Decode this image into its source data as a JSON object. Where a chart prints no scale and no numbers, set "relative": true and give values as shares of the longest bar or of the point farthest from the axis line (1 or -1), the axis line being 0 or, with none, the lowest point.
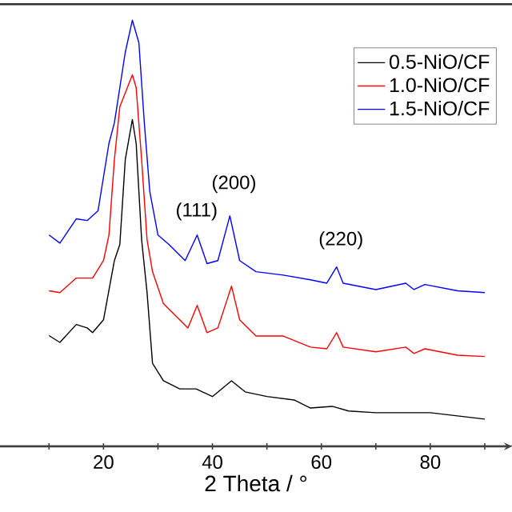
{
  "chart_data": {
    "type": "line",
    "relative": true,
    "xlabel": "2 Theta / °",
    "xlim": [
      1,
      95
    ],
    "xticks": [
      {
        "value": 10,
        "label": null
      },
      20,
      {
        "value": 30,
        "label": null
      },
      40,
      {
        "value": 50,
        "label": null
      },
      60,
      {
        "value": 70,
        "label": null
      },
      80,
      {
        "value": 90,
        "label": null
      }
    ],
    "tick_labels": "x",
    "legend": "top right",
    "grid": false,
    "marker": "none",
    "line_style": "solid",
    "annotations": [
      "(111)",
      "(200)",
      "(220)"
    ],
    "series": [
      {
        "name": "0.5-NiO/CF",
        "color": "#000000",
        "x": [
          10,
          12,
          15,
          17,
          18,
          20,
          22,
          23,
          24,
          25.3,
          26,
          27,
          28,
          29,
          31,
          34,
          37,
          40,
          43.5,
          46,
          50,
          55,
          58,
          62,
          65,
          70,
          80,
          90
        ],
        "values": [
          0.26,
          0.244,
          0.286,
          0.278,
          0.267,
          0.297,
          0.436,
          0.474,
          0.673,
          0.767,
          0.711,
          0.485,
          0.361,
          0.195,
          0.154,
          0.135,
          0.135,
          0.117,
          0.154,
          0.128,
          0.117,
          0.109,
          0.09,
          0.094,
          0.083,
          0.079,
          0.079,
          0.064
        ]
      },
      {
        "name": "1.0-NiO/CF",
        "color": "#ff0000",
        "x": [
          10,
          12,
          15,
          18,
          20,
          21,
          22,
          23,
          25.3,
          26,
          27,
          28,
          29,
          31,
          34,
          35.5,
          37.2,
          39,
          41,
          43.5,
          45,
          48,
          53,
          58,
          61,
          62.8,
          64,
          70,
          75.5,
          77,
          79,
          85,
          90
        ],
        "values": [
          0.365,
          0.361,
          0.395,
          0.395,
          0.436,
          0.496,
          0.673,
          0.797,
          0.872,
          0.842,
          0.673,
          0.485,
          0.41,
          0.335,
          0.297,
          0.278,
          0.331,
          0.267,
          0.278,
          0.376,
          0.297,
          0.259,
          0.259,
          0.233,
          0.229,
          0.267,
          0.233,
          0.222,
          0.233,
          0.218,
          0.229,
          0.214,
          0.211
        ]
      },
      {
        "name": "1.5-NiO/CF",
        "color": "#0000ff",
        "x": [
          10,
          12,
          15,
          17,
          19,
          21,
          22,
          24,
          25.3,
          26.5,
          27.5,
          28.5,
          30,
          32,
          35,
          37.2,
          39,
          41,
          43.2,
          45,
          48,
          53,
          58,
          61,
          62.8,
          64,
          70,
          75.5,
          77,
          79,
          85,
          90
        ],
        "values": [
          0.496,
          0.477,
          0.534,
          0.53,
          0.553,
          0.711,
          0.759,
          0.925,
          1.0,
          0.947,
          0.759,
          0.598,
          0.496,
          0.474,
          0.436,
          0.496,
          0.429,
          0.436,
          0.541,
          0.436,
          0.41,
          0.402,
          0.391,
          0.383,
          0.421,
          0.383,
          0.368,
          0.383,
          0.368,
          0.38,
          0.365,
          0.361
        ]
      }
    ]
  }
}
